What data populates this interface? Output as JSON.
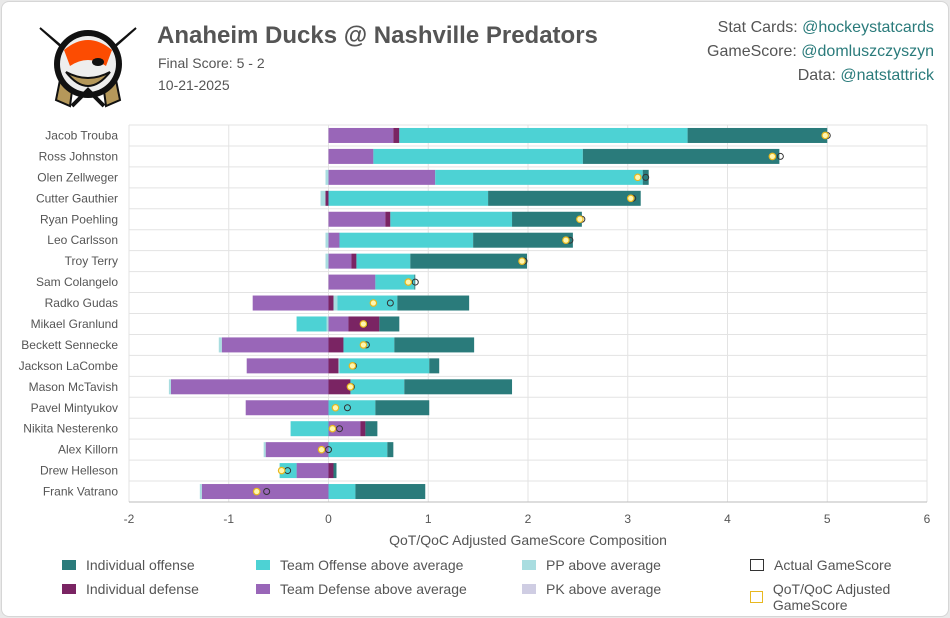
{
  "header": {
    "title": "Anaheim Ducks @ Nashville Predators",
    "final_score": "Final Score: 5 - 2",
    "date": "10-21-2025",
    "credits": [
      {
        "label": "Stat Cards: ",
        "handle": "@hockeystatcards"
      },
      {
        "label": "GameScore: ",
        "handle": "@domluszczyszyn"
      },
      {
        "label": "Data: ",
        "handle": "@natstattrick"
      }
    ],
    "logo": "Anaheim Ducks logo"
  },
  "colors": {
    "individual_offense": "#2a7b7b",
    "team_offense": "#4dd2d4",
    "pp": "#a9dde0",
    "individual_defense": "#7a2463",
    "team_defense": "#9966b8",
    "pk": "#cfcde3",
    "actual_marker": "#333333",
    "adjusted_marker": "#e8b820"
  },
  "chart_data": {
    "type": "bar",
    "orientation": "horizontal-stacked",
    "xlabel": "QoT/QoC Adjusted GameScore Composition",
    "xlim": [
      -2,
      6
    ],
    "xticks": [
      "-2",
      "-1",
      "0",
      "1",
      "2",
      "3",
      "4",
      "5",
      "6"
    ],
    "grid": true,
    "legend_position": "bottom",
    "legend": [
      {
        "key": "individual_offense",
        "label": "Individual offense"
      },
      {
        "key": "team_offense",
        "label": "Team Offense above average"
      },
      {
        "key": "pp",
        "label": "PP above average"
      },
      {
        "key": "actual",
        "label": "Actual GameScore"
      },
      {
        "key": "individual_defense",
        "label": "Individual defense"
      },
      {
        "key": "team_defense",
        "label": "Team Defense above average"
      },
      {
        "key": "pk",
        "label": "PK above average"
      },
      {
        "key": "adjusted",
        "label": "QoT/QoC Adjusted GameScore"
      }
    ],
    "players": [
      {
        "name": "Jacob Trouba",
        "team_defense": 0.65,
        "individual_defense": 0.06,
        "pp": 0,
        "team_offense": 2.89,
        "individual_offense": 1.4,
        "actual": 5.0,
        "adjusted": 4.98
      },
      {
        "name": "Ross Johnston",
        "team_defense": 0.45,
        "individual_defense": 0,
        "pp": 0,
        "team_offense": 2.1,
        "individual_offense": 1.97,
        "actual": 4.53,
        "adjusted": 4.45
      },
      {
        "name": "Olen Zellweger",
        "team_defense": 1.07,
        "individual_defense": 0,
        "pp": -0.03,
        "team_offense": 2.08,
        "individual_offense": 0.06,
        "actual": 3.18,
        "adjusted": 3.1
      },
      {
        "name": "Cutter Gauthier",
        "team_defense": 0,
        "individual_defense": -0.03,
        "pp": -0.05,
        "team_offense": 1.6,
        "individual_offense": 1.53,
        "actual": 3.05,
        "adjusted": 3.03
      },
      {
        "name": "Ryan Poehling",
        "team_defense": 0.57,
        "individual_defense": 0.05,
        "pp": 0,
        "team_offense": 1.22,
        "individual_offense": 0.7,
        "actual": 2.54,
        "adjusted": 2.52
      },
      {
        "name": "Leo Carlsson",
        "team_defense": 0.11,
        "individual_defense": 0,
        "pp": -0.03,
        "team_offense": 1.34,
        "individual_offense": 1.0,
        "actual": 2.42,
        "adjusted": 2.38
      },
      {
        "name": "Troy Terry",
        "team_defense": 0.23,
        "individual_defense": 0.05,
        "pp": -0.03,
        "team_offense": 0.54,
        "individual_offense": 1.17,
        "actual": 1.96,
        "adjusted": 1.94
      },
      {
        "name": "Sam Colangelo",
        "team_defense": 0.47,
        "individual_defense": 0,
        "pp": 0,
        "team_offense": 0.39,
        "individual_offense": 0.01,
        "actual": 0.87,
        "adjusted": 0.8
      },
      {
        "name": "Radko Gudas",
        "team_defense": -0.76,
        "individual_defense": 0.05,
        "pp": 0.04,
        "team_offense": 0.6,
        "individual_offense": 0.72,
        "actual": 0.62,
        "adjusted": 0.45
      },
      {
        "name": "Mikael Granlund",
        "team_defense": 0.2,
        "individual_defense": 0.31,
        "pp": -0.02,
        "team_offense": -0.3,
        "individual_offense": 0.2,
        "actual": 0.36,
        "adjusted": 0.35
      },
      {
        "name": "Beckett Sennecke",
        "team_defense": -1.07,
        "individual_defense": 0.15,
        "pp": -0.03,
        "team_offense": 0.51,
        "individual_offense": 0.8,
        "actual": 0.38,
        "adjusted": 0.35
      },
      {
        "name": "Jackson LaCombe",
        "team_defense": -0.82,
        "individual_defense": 0.1,
        "pp": 0.01,
        "team_offense": 0.9,
        "individual_offense": 0.1,
        "actual": 0.25,
        "adjusted": 0.24
      },
      {
        "name": "Mason McTavish",
        "team_defense": -1.58,
        "individual_defense": 0.22,
        "pp": -0.02,
        "team_offense": 0.54,
        "individual_offense": 1.08,
        "actual": 0.23,
        "adjusted": 0.22
      },
      {
        "name": "Pavel Mintyukov",
        "team_defense": -0.83,
        "individual_defense": 0,
        "pp": 0,
        "team_offense": 0.47,
        "individual_offense": 0.54,
        "actual": 0.19,
        "adjusted": 0.07
      },
      {
        "name": "Nikita Nesterenko",
        "team_defense": 0.32,
        "individual_defense": 0.05,
        "pp": 0,
        "team_offense": -0.38,
        "individual_offense": 0.12,
        "actual": 0.11,
        "adjusted": 0.04
      },
      {
        "name": "Alex Killorn",
        "team_defense": -0.63,
        "individual_defense": 0,
        "pp": -0.02,
        "team_offense": 0.59,
        "individual_offense": 0.06,
        "actual": 0.0,
        "adjusted": -0.07
      },
      {
        "name": "Drew Helleson",
        "team_defense": -0.32,
        "individual_defense": 0.05,
        "pp": 0,
        "team_offense": -0.17,
        "individual_offense": 0.03,
        "actual": -0.41,
        "adjusted": -0.47
      },
      {
        "name": "Frank Vatrano",
        "team_defense": -1.27,
        "individual_defense": 0,
        "pp": -0.02,
        "team_offense": 0.27,
        "individual_offense": 0.7,
        "actual": -0.62,
        "adjusted": -0.72
      }
    ]
  }
}
